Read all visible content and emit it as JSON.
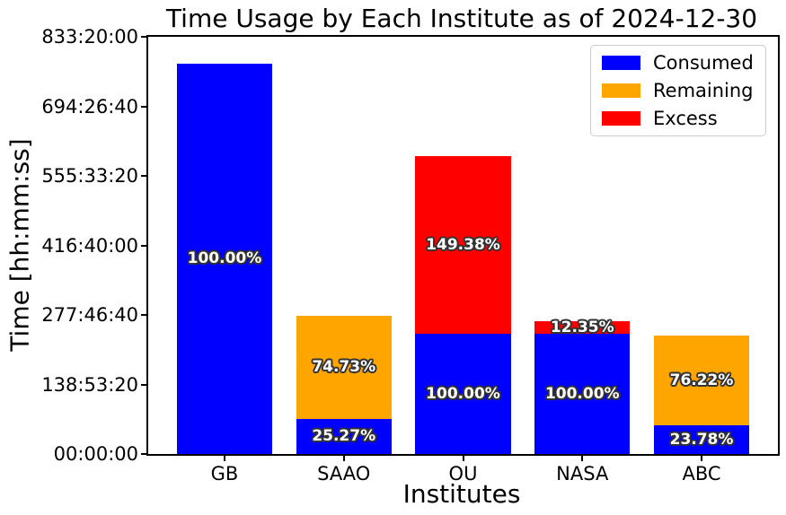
{
  "chart_data": {
    "type": "bar",
    "stacked": true,
    "title": "Time Usage by Each Institute as of 2024-12-30",
    "xlabel": "Institutes",
    "ylabel": "Time [hh:mm:ss]",
    "categories": [
      "GB",
      "SAAO",
      "OU",
      "NASA",
      "ABC"
    ],
    "y_ticks": [
      "00:00:00",
      "138:53:20",
      "277:46:40",
      "416:40:00",
      "555:33:20",
      "694:26:40",
      "833:20:00"
    ],
    "y_tick_seconds": [
      0,
      500000,
      1000000,
      1500000,
      2000000,
      2500000,
      3000000
    ],
    "ylim_seconds": [
      0,
      3000000
    ],
    "grid": false,
    "legend_position": "upper right",
    "legend": [
      {
        "label": "Consumed",
        "color": "#0000ff"
      },
      {
        "label": "Remaining",
        "color": "#ffa500"
      },
      {
        "label": "Excess",
        "color": "#ff0000"
      }
    ],
    "bars": [
      {
        "category": "GB",
        "segments": [
          {
            "series": "Consumed",
            "seconds": 2808000,
            "label": "100.00%"
          }
        ]
      },
      {
        "category": "SAAO",
        "segments": [
          {
            "series": "Consumed",
            "seconds": 254722,
            "label": "25.27%"
          },
          {
            "series": "Remaining",
            "seconds": 753278,
            "label": "74.73%"
          }
        ]
      },
      {
        "category": "OU",
        "segments": [
          {
            "series": "Consumed",
            "seconds": 864000,
            "label": "100.00%"
          },
          {
            "series": "Excess",
            "seconds": 1290643,
            "label": "149.38%"
          }
        ]
      },
      {
        "category": "NASA",
        "segments": [
          {
            "series": "Consumed",
            "seconds": 864000,
            "label": "100.00%"
          },
          {
            "series": "Excess",
            "seconds": 106704,
            "label": "12.35%"
          }
        ]
      },
      {
        "category": "ABC",
        "segments": [
          {
            "series": "Consumed",
            "seconds": 205459,
            "label": "23.78%"
          },
          {
            "series": "Remaining",
            "seconds": 658541,
            "label": "76.22%"
          }
        ]
      }
    ]
  }
}
